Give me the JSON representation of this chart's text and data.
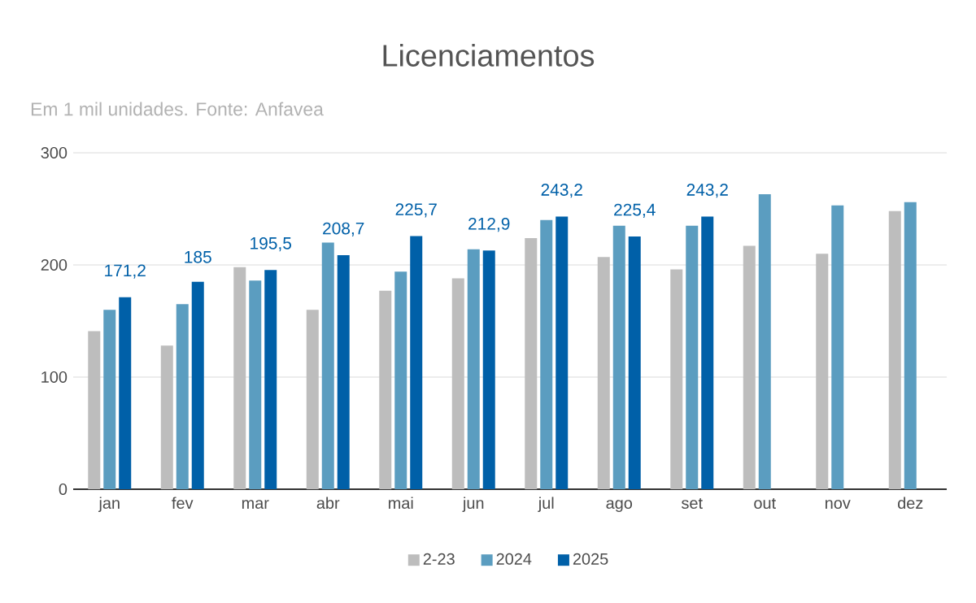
{
  "chart_data": {
    "type": "bar",
    "title": "Licenciamentos",
    "subtitle": "Em 1 mil unidades. Fonte: Anfavea",
    "categories": [
      "jan",
      "fev",
      "mar",
      "abr",
      "mai",
      "jun",
      "jul",
      "ago",
      "set",
      "out",
      "nov",
      "dez"
    ],
    "series": [
      {
        "name": "2-23",
        "color": "#bdbdbd",
        "values": [
          141,
          128,
          198,
          160,
          177,
          188,
          224,
          207,
          196,
          217,
          210,
          248
        ]
      },
      {
        "name": "2024",
        "color": "#5b9dc0",
        "values": [
          160,
          165,
          186,
          220,
          194,
          214,
          240,
          235,
          235,
          263,
          253,
          256
        ]
      },
      {
        "name": "2025",
        "color": "#0060a8",
        "values": [
          171.2,
          185,
          195.5,
          208.7,
          225.7,
          212.9,
          243.2,
          225.4,
          243.2,
          null,
          null,
          null
        ],
        "value_labels": [
          "171,2",
          "185",
          "195,5",
          "208,7",
          "225,7",
          "212,9",
          "243,2",
          "225,4",
          "243,2",
          null,
          null,
          null
        ]
      }
    ],
    "ylim": [
      0,
      300
    ],
    "yticks": [
      0,
      100,
      200,
      300
    ],
    "grid": "y",
    "legend": "bottom"
  }
}
